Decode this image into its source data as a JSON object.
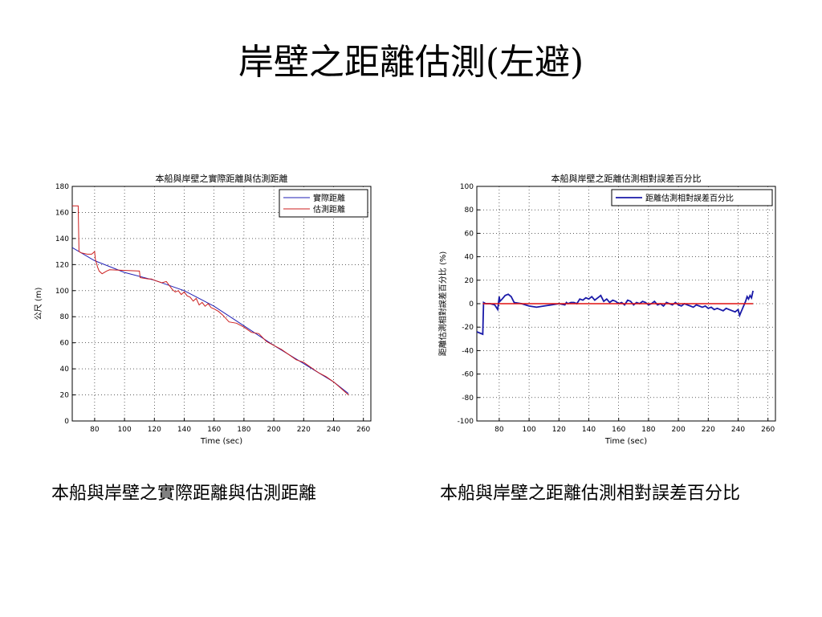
{
  "slide": {
    "title": "岸壁之距離估測(左避)",
    "captions": [
      "本船與岸壁之實際距離與估測距離",
      "本船與岸壁之距離估測相對誤差百分比"
    ]
  },
  "chart_data": [
    {
      "type": "line",
      "title": "本船與岸壁之實際距離與估測距離",
      "xlabel": "Time (sec)",
      "ylabel": "公尺 (m)",
      "xlim": [
        65,
        265
      ],
      "ylim": [
        0,
        180
      ],
      "xticks": [
        80,
        100,
        120,
        140,
        160,
        180,
        200,
        220,
        240,
        260
      ],
      "yticks": [
        0,
        20,
        40,
        60,
        80,
        100,
        120,
        140,
        160,
        180
      ],
      "grid": true,
      "legend_position": "top-right",
      "series": [
        {
          "name": "實際距離",
          "color": "#1f1fb4",
          "x": [
            65,
            80,
            100,
            120,
            140,
            160,
            180,
            200,
            220,
            240,
            250
          ],
          "y": [
            133,
            123,
            114,
            108,
            100,
            88,
            73,
            58,
            44,
            30,
            21
          ]
        },
        {
          "name": "估測距離",
          "color": "#cc1f1f",
          "x": [
            65,
            66,
            67,
            69,
            69.5,
            71,
            75,
            78,
            80,
            80.5,
            82,
            83,
            85,
            88,
            90,
            110,
            110.5,
            116,
            118,
            120,
            125,
            128,
            130,
            132,
            134,
            136,
            138,
            140,
            142,
            144,
            146,
            148,
            150,
            152,
            154,
            156,
            158,
            160,
            163,
            166,
            170,
            175,
            180,
            185,
            190,
            195,
            200,
            205,
            210,
            215,
            220,
            225,
            230,
            235,
            240,
            245,
            250
          ],
          "y": [
            165,
            165,
            165,
            165,
            130,
            129,
            128,
            128,
            130,
            124,
            118,
            115,
            113,
            115,
            116,
            115,
            110,
            109,
            109,
            108,
            106,
            107,
            104,
            101,
            99,
            100,
            97,
            99,
            96,
            95,
            92,
            94,
            89,
            91,
            88,
            90,
            87,
            86,
            84,
            81,
            76,
            75,
            72,
            68,
            67,
            61,
            58,
            55,
            51,
            47,
            45,
            41,
            37,
            34,
            30,
            25,
            20
          ]
        }
      ]
    },
    {
      "type": "line",
      "title": "本船與岸壁之距離估測相對誤差百分比",
      "xlabel": "Time (sec)",
      "ylabel": "距離估測相對誤差百分比 (%)",
      "xlim": [
        65,
        265
      ],
      "ylim": [
        -100,
        100
      ],
      "xticks": [
        80,
        100,
        120,
        140,
        160,
        180,
        200,
        220,
        240,
        260
      ],
      "yticks": [
        -100,
        -80,
        -60,
        -40,
        -20,
        0,
        20,
        40,
        60,
        80,
        100
      ],
      "grid": true,
      "legend_position": "top-right",
      "series": [
        {
          "name": "距離估測相對誤差百分比",
          "color": "#1a1aa8",
          "x": [
            65,
            67,
            69,
            69.5,
            71,
            74,
            77,
            79,
            80,
            80.5,
            82,
            84,
            86,
            88,
            90,
            95,
            100,
            105,
            110,
            115,
            120,
            124,
            125,
            126,
            128,
            130,
            132,
            134,
            136,
            138,
            140,
            142,
            144,
            146,
            148,
            150,
            152,
            154,
            156,
            158,
            160,
            162,
            164,
            166,
            168,
            170,
            172,
            174,
            176,
            178,
            180,
            182,
            184,
            186,
            188,
            190,
            192,
            194,
            196,
            198,
            200,
            202,
            204,
            206,
            208,
            210,
            212,
            214,
            216,
            218,
            220,
            222,
            224,
            226,
            228,
            230,
            232,
            234,
            236,
            238,
            240,
            241,
            242,
            243,
            244,
            245,
            246,
            247,
            248,
            249,
            250
          ],
          "y": [
            -24,
            -25,
            -26,
            1,
            0,
            0,
            -1,
            -5,
            6,
            2,
            4,
            7,
            8,
            6,
            1,
            0,
            -2,
            -3,
            -2,
            -1,
            0,
            -1,
            1,
            0,
            1,
            1,
            0,
            4,
            3,
            5,
            4,
            6,
            3,
            5,
            7,
            2,
            4,
            1,
            3,
            2,
            0,
            1,
            -1,
            3,
            2,
            -1,
            1,
            0,
            2,
            1,
            -1,
            0,
            2,
            -1,
            0,
            -2,
            1,
            0,
            -1,
            1,
            -1,
            -2,
            0,
            -1,
            -2,
            -3,
            -1,
            -2,
            -3,
            -2,
            -4,
            -3,
            -5,
            -4,
            -5,
            -6,
            -4,
            -5,
            -6,
            -7,
            -5,
            -10,
            -7,
            -4,
            -1,
            2,
            6,
            4,
            7,
            5,
            11
          ]
        },
        {
          "name": "",
          "color": "#e01010",
          "x": [
            69,
            250
          ],
          "y": [
            0,
            0
          ]
        }
      ]
    }
  ]
}
